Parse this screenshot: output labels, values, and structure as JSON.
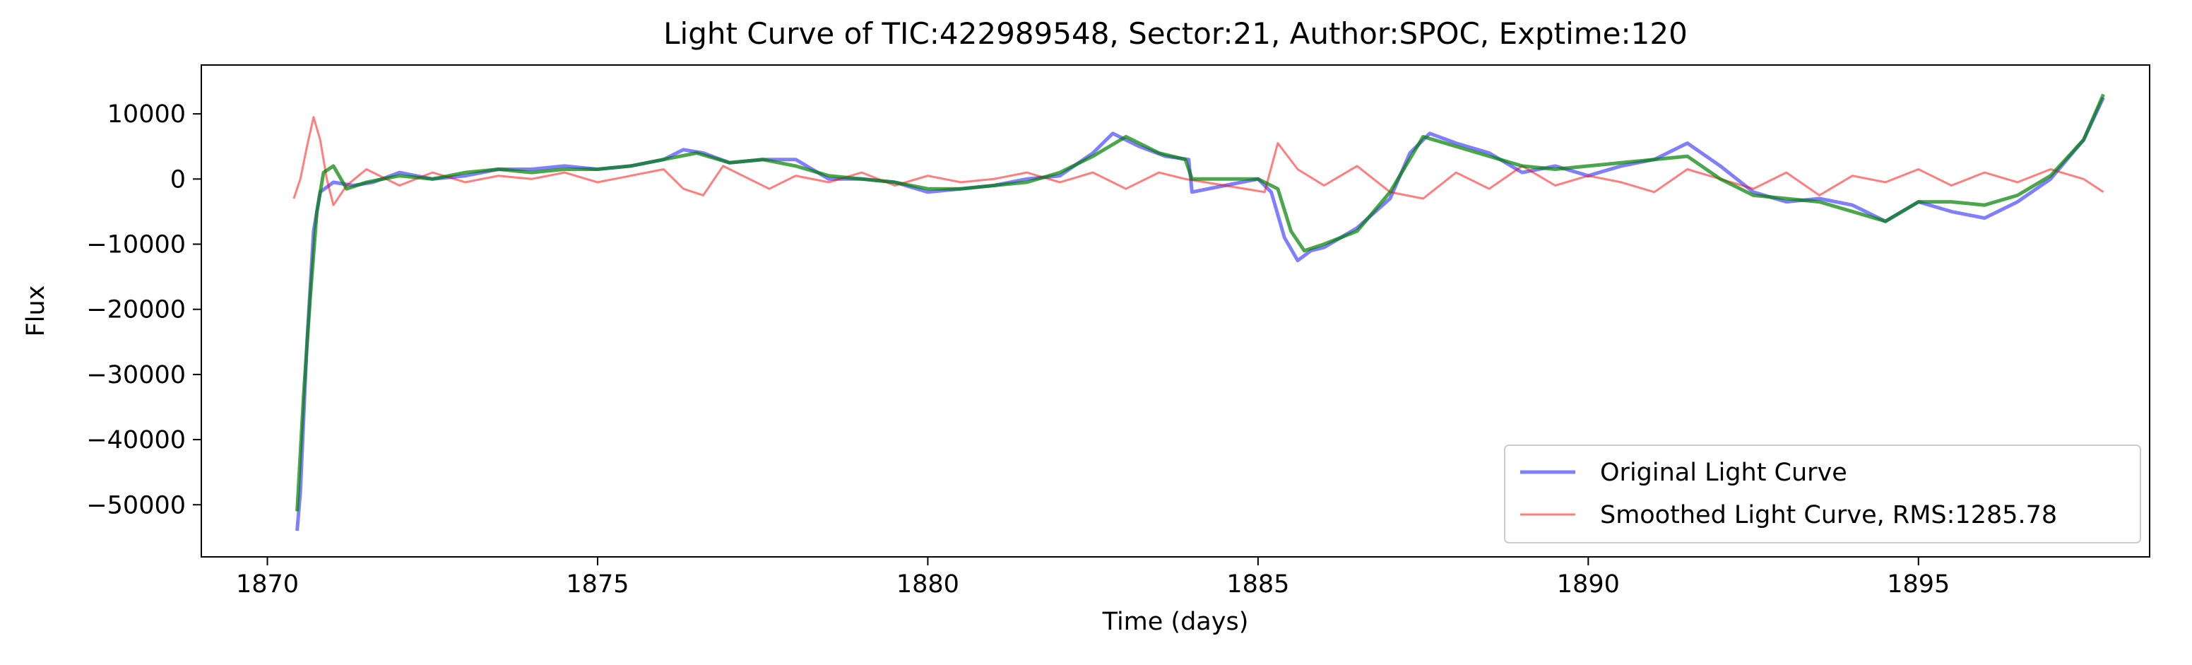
{
  "chart_data": {
    "type": "line",
    "title": "Light Curve of TIC:422989548, Sector:21, Author:SPOC, Exptime:120",
    "xlabel": "Time (days)",
    "ylabel": "Flux",
    "xlim": [
      1869.0,
      1898.5
    ],
    "ylim": [
      -58000,
      17500
    ],
    "xticks": [
      1870,
      1875,
      1880,
      1885,
      1890,
      1895
    ],
    "yticks": [
      10000,
      0,
      -10000,
      -20000,
      -30000,
      -40000,
      -50000
    ],
    "legend_position": "lower right",
    "grid": false,
    "series": [
      {
        "name": "Original Light Curve",
        "color": "#0000ff",
        "alpha": 0.5,
        "x": [
          1870.45,
          1870.5,
          1870.6,
          1870.7,
          1870.8,
          1871.0,
          1871.3,
          1871.6,
          1872.0,
          1872.5,
          1873.0,
          1873.5,
          1874.0,
          1874.5,
          1875.0,
          1875.5,
          1876.0,
          1876.3,
          1876.6,
          1877.0,
          1877.5,
          1878.0,
          1878.5,
          1879.0,
          1879.5,
          1880.0,
          1880.5,
          1881.0,
          1881.5,
          1882.0,
          1882.5,
          1882.8,
          1883.2,
          1883.6,
          1883.95,
          1884.0,
          1884.5,
          1885.0,
          1885.2,
          1885.4,
          1885.6,
          1885.8,
          1886.0,
          1886.5,
          1887.0,
          1887.3,
          1887.6,
          1888.0,
          1888.5,
          1889.0,
          1889.5,
          1890.0,
          1890.5,
          1891.0,
          1891.5,
          1892.0,
          1892.5,
          1893.0,
          1893.5,
          1894.0,
          1894.5,
          1895.0,
          1895.5,
          1896.0,
          1896.5,
          1897.0,
          1897.5,
          1897.8
        ],
        "y": [
          -54000,
          -48000,
          -25000,
          -8000,
          -2000,
          -500,
          -1000,
          -500,
          1000,
          0,
          500,
          1500,
          1500,
          2000,
          1500,
          2000,
          3000,
          4500,
          4000,
          2500,
          3000,
          3000,
          0,
          0,
          -500,
          -2000,
          -1500,
          -1000,
          0,
          500,
          4000,
          7000,
          5000,
          3500,
          3000,
          -2000,
          -1000,
          0,
          -2000,
          -9000,
          -12500,
          -11000,
          -10500,
          -7500,
          -3000,
          4000,
          7000,
          5500,
          4000,
          1000,
          2000,
          500,
          2000,
          3000,
          5500,
          2000,
          -2000,
          -3500,
          -3000,
          -4000,
          -6500,
          -3500,
          -5000,
          -6000,
          -3500,
          0,
          6000,
          12500
        ]
      },
      {
        "name": "Smoothed Light Curve, RMS:1285.78",
        "color": "#ff0000",
        "alpha": 0.5,
        "x": [
          1870.4,
          1870.5,
          1870.6,
          1870.7,
          1870.8,
          1870.9,
          1871.0,
          1871.2,
          1871.5,
          1872.0,
          1872.5,
          1873.0,
          1873.5,
          1874.0,
          1874.5,
          1875.0,
          1875.5,
          1876.0,
          1876.3,
          1876.6,
          1876.9,
          1877.2,
          1877.6,
          1878.0,
          1878.5,
          1879.0,
          1879.5,
          1880.0,
          1880.5,
          1881.0,
          1881.5,
          1882.0,
          1882.5,
          1883.0,
          1883.5,
          1883.9,
          1885.1,
          1885.3,
          1885.6,
          1886.0,
          1886.5,
          1887.0,
          1887.5,
          1888.0,
          1888.5,
          1889.0,
          1889.5,
          1890.0,
          1890.5,
          1891.0,
          1891.5,
          1892.0,
          1892.5,
          1893.0,
          1893.5,
          1894.0,
          1894.5,
          1895.0,
          1895.5,
          1896.0,
          1896.5,
          1897.0,
          1897.5,
          1897.8
        ],
        "y": [
          -3000,
          0,
          5000,
          9500,
          6000,
          0,
          -4000,
          -1000,
          1500,
          -1000,
          1000,
          -500,
          500,
          0,
          1000,
          -500,
          500,
          1500,
          -1500,
          -2500,
          2000,
          500,
          -1500,
          500,
          -500,
          1000,
          -1000,
          500,
          -500,
          0,
          1000,
          -500,
          1000,
          -1500,
          1000,
          0,
          -2000,
          5500,
          1500,
          -1000,
          2000,
          -2000,
          -3000,
          1000,
          -1500,
          2000,
          -1000,
          500,
          -500,
          -2000,
          1500,
          0,
          -1500,
          1000,
          -2500,
          500,
          -500,
          1500,
          -1000,
          1000,
          -500,
          1500,
          0,
          -2000
        ]
      },
      {
        "name": "",
        "color": "#008000",
        "alpha": 0.7,
        "x": [
          1870.45,
          1870.55,
          1870.65,
          1870.75,
          1870.85,
          1871.0,
          1871.2,
          1871.5,
          1872.0,
          1872.5,
          1873.0,
          1873.5,
          1874.0,
          1874.5,
          1875.0,
          1875.5,
          1876.0,
          1876.5,
          1877.0,
          1877.5,
          1878.0,
          1878.5,
          1879.0,
          1879.5,
          1880.0,
          1880.5,
          1881.0,
          1881.5,
          1882.0,
          1882.5,
          1883.0,
          1883.5,
          1883.9,
          1884.0,
          1884.5,
          1885.0,
          1885.3,
          1885.5,
          1885.7,
          1886.0,
          1886.5,
          1887.0,
          1887.5,
          1888.0,
          1888.5,
          1889.0,
          1889.5,
          1890.0,
          1890.5,
          1891.0,
          1891.5,
          1892.0,
          1892.5,
          1893.0,
          1893.5,
          1894.0,
          1894.5,
          1895.0,
          1895.5,
          1896.0,
          1896.5,
          1897.0,
          1897.5,
          1897.8
        ],
        "y": [
          -51000,
          -33000,
          -18000,
          -5000,
          1000,
          2000,
          -1500,
          -500,
          500,
          0,
          1000,
          1500,
          1000,
          1500,
          1500,
          2000,
          3000,
          4000,
          2500,
          3000,
          2000,
          500,
          0,
          -500,
          -1500,
          -1500,
          -1000,
          -500,
          1000,
          3500,
          6500,
          4000,
          3000,
          0,
          0,
          0,
          -1500,
          -8000,
          -11000,
          -10000,
          -8000,
          -2000,
          6500,
          5000,
          3500,
          2000,
          1500,
          2000,
          2500,
          3000,
          3500,
          0,
          -2500,
          -3000,
          -3500,
          -5000,
          -6500,
          -3500,
          -3500,
          -4000,
          -2500,
          500,
          6000,
          13000
        ]
      }
    ]
  }
}
